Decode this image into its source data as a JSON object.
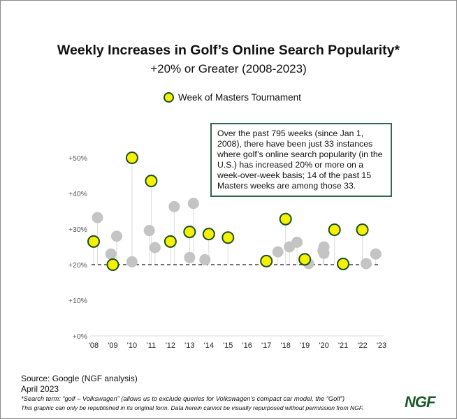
{
  "chart_data": {
    "type": "scatter",
    "title": "Weekly Increases in Golf’s Online Search Popularity*",
    "subtitle": "+20% or Greater (2008-2023)",
    "legend": {
      "label": "Week of Masters Tournament",
      "placement": "top"
    },
    "x_ticks": [
      "'08",
      "'09",
      "'10",
      "'11",
      "'12",
      "'13",
      "'14",
      "'15",
      "'16",
      "'17",
      "'18",
      "'19",
      "'20",
      "'21",
      "'22",
      "'23"
    ],
    "y_ticks": [
      "+0%",
      "+10%",
      "+20%",
      "+30%",
      "+40%",
      "+50%"
    ],
    "xlim": [
      2008,
      2023
    ],
    "ylim": [
      0,
      50
    ],
    "reference_line": {
      "y": 20,
      "style": "dashed"
    },
    "colors": {
      "masters": "#f5f200",
      "masters_border": "#1f4d1f",
      "other": "#c4c4c4",
      "stem": "#dddddd"
    },
    "series": [
      {
        "name": "Week of Masters Tournament",
        "points": [
          [
            2008.0,
            26.5
          ],
          [
            2009.0,
            20.0
          ],
          [
            2010.0,
            50.0
          ],
          [
            2011.0,
            43.5
          ],
          [
            2012.0,
            26.5
          ],
          [
            2013.0,
            29.2
          ],
          [
            2014.0,
            28.6
          ],
          [
            2015.0,
            27.6
          ],
          [
            2017.0,
            21.0
          ],
          [
            2018.0,
            32.8
          ],
          [
            2019.0,
            21.5
          ],
          [
            2020.55,
            29.8
          ],
          [
            2021.0,
            20.2
          ],
          [
            2022.0,
            29.8
          ]
        ]
      },
      {
        "points": [
          [
            2008.2,
            33.2
          ],
          [
            2008.9,
            23.0
          ],
          [
            2009.2,
            28.0
          ],
          [
            2010.0,
            20.8
          ],
          [
            2010.9,
            29.6
          ],
          [
            2011.2,
            24.8
          ],
          [
            2012.2,
            36.3
          ],
          [
            2013.0,
            22.0
          ],
          [
            2013.2,
            37.2
          ],
          [
            2013.8,
            21.4
          ],
          [
            2017.6,
            23.6
          ],
          [
            2018.2,
            25.0
          ],
          [
            2018.6,
            26.3
          ],
          [
            2019.2,
            20.3
          ],
          [
            2019.95,
            24.0
          ],
          [
            2020.0,
            25.0
          ],
          [
            2020.0,
            23.2
          ],
          [
            2022.2,
            20.3
          ],
          [
            2022.7,
            23.0
          ]
        ]
      }
    ],
    "annotation": "Over the past 795 weeks (since Jan 1, 2008), there have been just 33 instances where golf’s online search popularity (in the U.S.) has increased 20% or more on a week-over-week basis; 14 of the past 15 Masters weeks are among those 33."
  },
  "footer": {
    "source": "Source: Google (NGF analysis)",
    "date": "April 2023",
    "note": "*Search term: “golf – Volkswagen” (allows us to exclude queries for Volkswagen’s compact car model, the “Golf”)",
    "disclaimer": "This graphic can only be republished in its original form. Data herein cannot be visually repurposed without permission from NGF.",
    "logo": "NGF"
  }
}
